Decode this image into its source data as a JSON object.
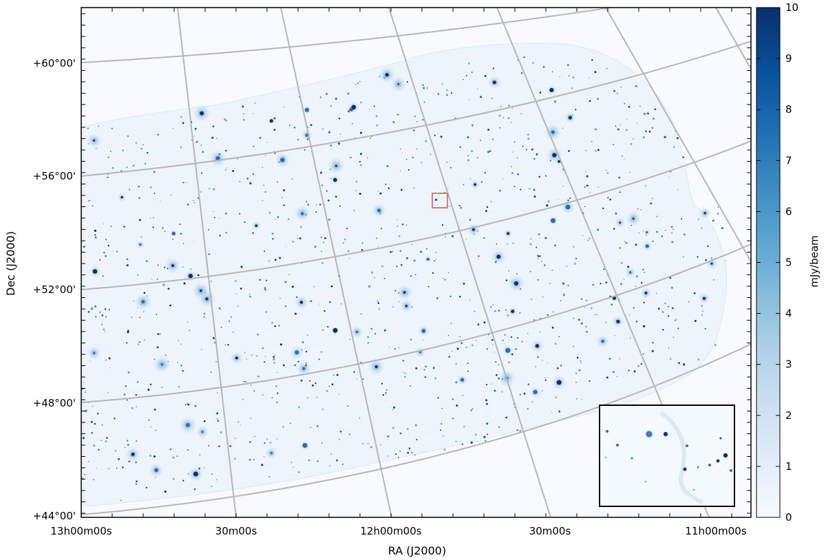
{
  "chart_data": {
    "type": "heatmap",
    "subtype": "radio sky survey mosaic (celestial coordinate image)",
    "xlabel": "RA (J2000)",
    "ylabel": "Dec (J2000)",
    "x_ticks": [
      "13h00m00s",
      "30m00s",
      "12h00m00s",
      "30m00s",
      "11h00m00s"
    ],
    "y_ticks": [
      "+44°00'",
      "+48°00'",
      "+52°00'",
      "+56°00'",
      "+60°00'"
    ],
    "grid": true,
    "colorbar": {
      "label": "mJy/beam",
      "min": 0,
      "max": 10,
      "ticks": [
        0,
        1,
        2,
        3,
        4,
        5,
        6,
        7,
        8,
        9,
        10
      ],
      "colormap": "Blues",
      "color_low": "#f7fbff",
      "color_high": "#08306b"
    },
    "inset": {
      "present": true,
      "location": "bottom-right",
      "shows": "zoom of region outlined by red box"
    },
    "highlight_box_color": "#f07070"
  }
}
